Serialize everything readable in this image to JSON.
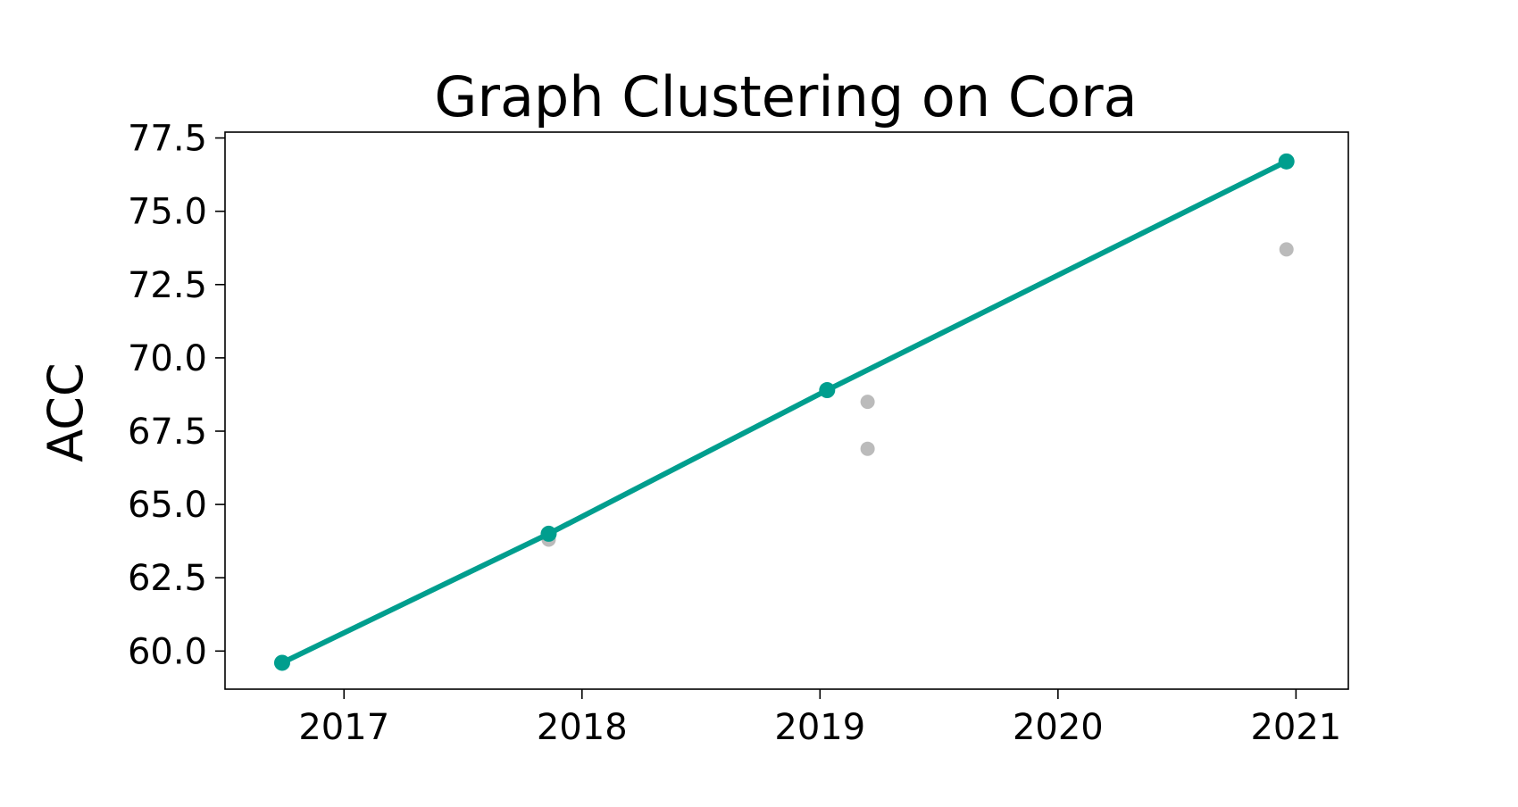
{
  "chart_data": {
    "type": "line",
    "title": "Graph Clustering on Cora",
    "xlabel": "",
    "ylabel": "ACC",
    "xlim": [
      2016.5,
      2021.22
    ],
    "ylim": [
      58.7,
      77.7
    ],
    "xticks": [
      2017,
      2018,
      2019,
      2020,
      2021
    ],
    "yticks": [
      60.0,
      62.5,
      65.0,
      67.5,
      70.0,
      72.5,
      75.0,
      77.5
    ],
    "xtick_labels": [
      "2017",
      "2018",
      "2019",
      "2020",
      "2021"
    ],
    "ytick_labels": [
      "60.0",
      "62.5",
      "65.0",
      "67.5",
      "70.0",
      "72.5",
      "75.0",
      "77.5"
    ],
    "grid": false,
    "legend": "none",
    "series": [
      {
        "style": "line-with-markers",
        "color": "#009e8e",
        "points": [
          {
            "x": 2016.74,
            "y": 59.6
          },
          {
            "x": 2017.86,
            "y": 64.0
          },
          {
            "x": 2019.03,
            "y": 68.9
          },
          {
            "x": 2020.96,
            "y": 76.7
          }
        ]
      },
      {
        "style": "markers",
        "color": "#bbbbbb",
        "points": [
          {
            "x": 2017.86,
            "y": 63.8
          },
          {
            "x": 2019.2,
            "y": 68.5
          },
          {
            "x": 2019.2,
            "y": 66.9
          },
          {
            "x": 2020.96,
            "y": 73.7
          }
        ]
      }
    ]
  }
}
